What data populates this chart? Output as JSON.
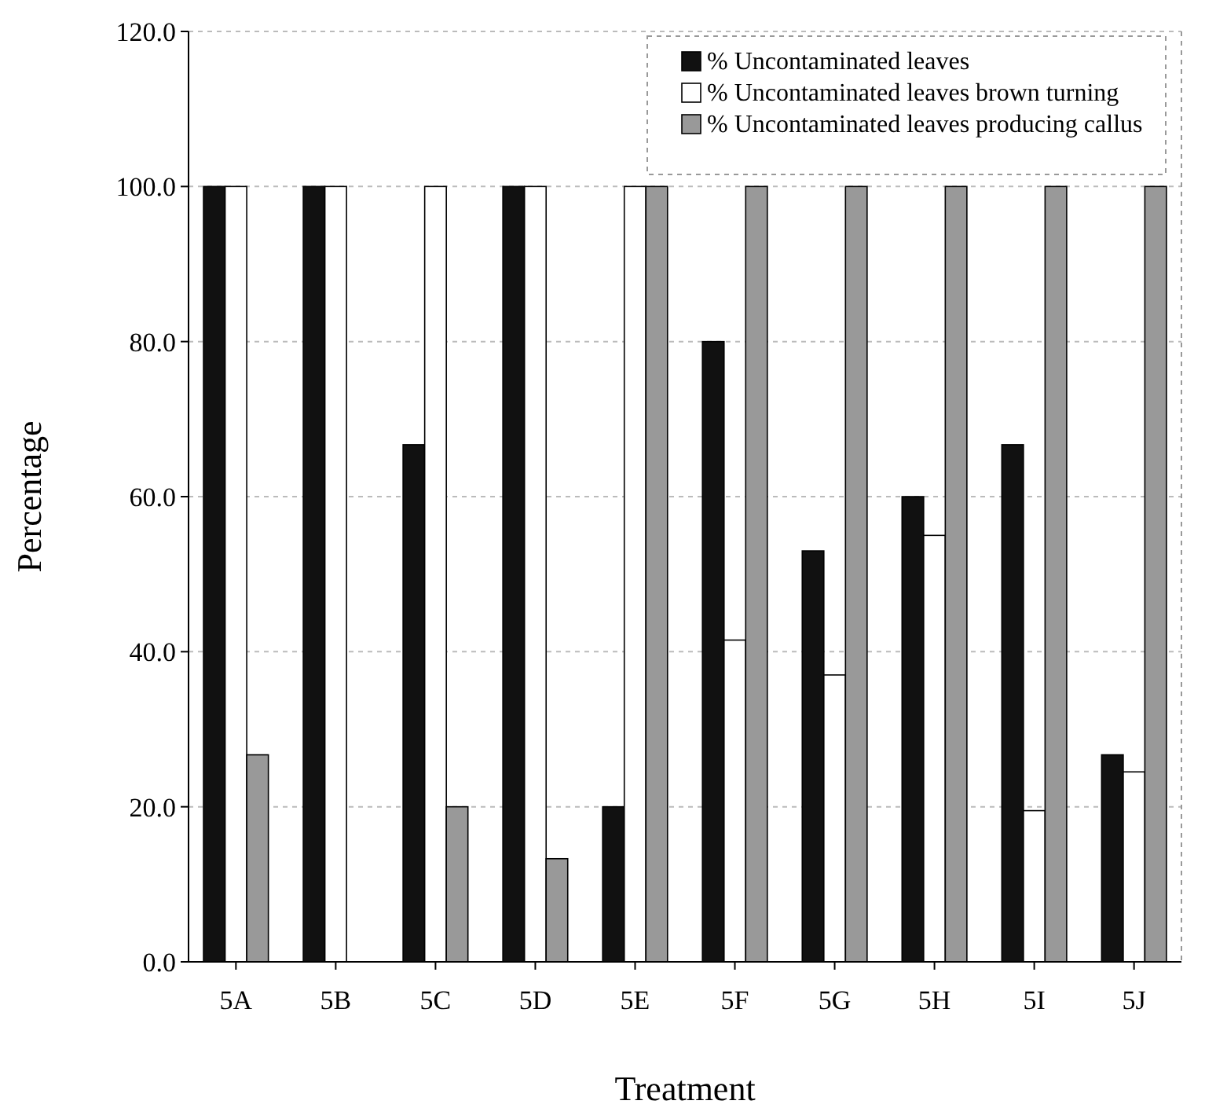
{
  "chart_data": {
    "type": "bar",
    "xlabel": "Treatment",
    "ylabel": "Percentage",
    "categories": [
      "5A",
      "5B",
      "5C",
      "5D",
      "5E",
      "5F",
      "5G",
      "5H",
      "5I",
      "5J"
    ],
    "series": [
      {
        "name": "% Uncontaminated leaves",
        "color": "#111111",
        "values": [
          100,
          100,
          66.7,
          100,
          20,
          80,
          53,
          60,
          66.7,
          26.7
        ]
      },
      {
        "name": "% Uncontaminated leaves brown turning",
        "color": "#ffffff",
        "values": [
          100,
          100,
          100,
          100,
          100,
          41.5,
          37,
          55,
          19.5,
          24.5
        ]
      },
      {
        "name": "% Uncontaminated leaves producing callus",
        "color": "#999999",
        "values": [
          26.7,
          0,
          20,
          13.3,
          100,
          100,
          100,
          100,
          100,
          100
        ]
      }
    ],
    "ylim": [
      0,
      120
    ],
    "yticks": [
      {
        "value": 0,
        "label": "0.0"
      },
      {
        "value": 20,
        "label": "20.0"
      },
      {
        "value": 40,
        "label": "40.0"
      },
      {
        "value": 60,
        "label": "60.0"
      },
      {
        "value": 80,
        "label": "80.0"
      },
      {
        "value": 100,
        "label": "100.0"
      },
      {
        "value": 120,
        "label": "120.0"
      }
    ],
    "grid": "y",
    "legend": "top right"
  }
}
